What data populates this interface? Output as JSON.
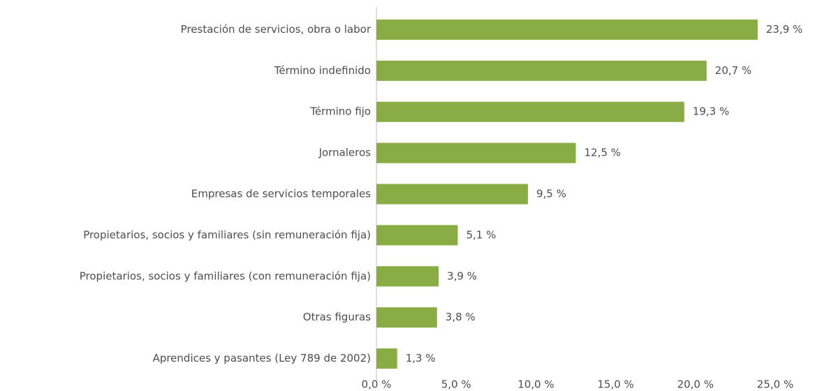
{
  "chart_data": {
    "type": "bar",
    "orientation": "horizontal",
    "categories": [
      "Prestación de servicios, obra o labor",
      "Término indefinido",
      "Término fijo",
      "Jornaleros",
      "Empresas de servicios temporales",
      "Propietarios, socios y familiares (sin remuneración fija)",
      "Propietarios, socios y familiares (con remuneración fija)",
      "Otras figuras",
      "Aprendices y pasantes (Ley 789 de 2002)"
    ],
    "values": [
      23.9,
      20.7,
      19.3,
      12.5,
      9.5,
      5.1,
      3.9,
      3.8,
      1.3
    ],
    "value_labels": [
      "23,9 %",
      "20,7 %",
      "19,3 %",
      "12,5 %",
      "9,5 %",
      "5,1 %",
      "3,9 %",
      "3,8 %",
      "1,3 %"
    ],
    "color": "#8aac45",
    "xlim": [
      0,
      25
    ],
    "xticks": [
      {
        "value": 0,
        "label": "0,0 %"
      },
      {
        "value": 5,
        "label": "5,0 %"
      },
      {
        "value": 10,
        "label": "10,0 %"
      },
      {
        "value": 15,
        "label": "15,0 %"
      },
      {
        "value": 20,
        "label": "20,0 %"
      },
      {
        "value": 25,
        "label": "25,0 %"
      }
    ],
    "grid": false
  }
}
